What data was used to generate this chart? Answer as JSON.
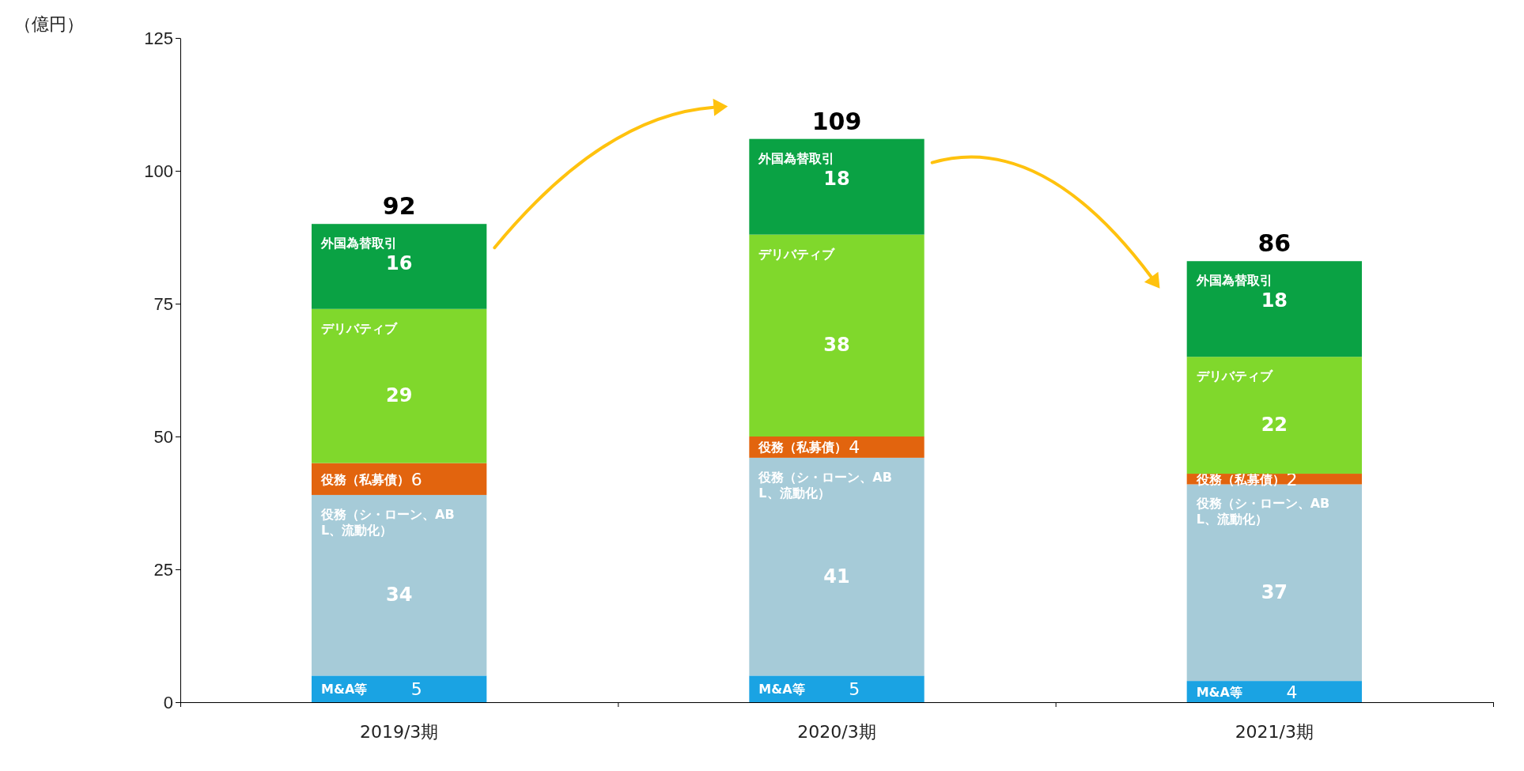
{
  "chart_data": {
    "type": "bar",
    "stacked": true,
    "ylabel": "（億円）",
    "categories": [
      "2019/3期",
      "2020/3期",
      "2021/3期"
    ],
    "series": [
      {
        "name": "M&A等",
        "color": "#1aa3e3",
        "values": [
          5,
          5,
          4
        ]
      },
      {
        "name": "役務（シ・ローン、ABL、流動化）",
        "color": "#a6cbd8",
        "values": [
          34,
          41,
          37
        ]
      },
      {
        "name": "役務（私募債）",
        "color": "#e2640e",
        "values": [
          6,
          4,
          2
        ]
      },
      {
        "name": "デリバティブ",
        "color": "#80d82c",
        "values": [
          29,
          38,
          22
        ]
      },
      {
        "name": "外国為替取引",
        "color": "#0aa244",
        "values": [
          16,
          18,
          18
        ]
      }
    ],
    "ylim": [
      0,
      125
    ],
    "yticks": [
      0,
      25,
      50,
      75,
      100,
      125
    ],
    "grid": false,
    "legend": false,
    "data_labels": true,
    "totals": [
      "92",
      "109",
      "86"
    ]
  }
}
